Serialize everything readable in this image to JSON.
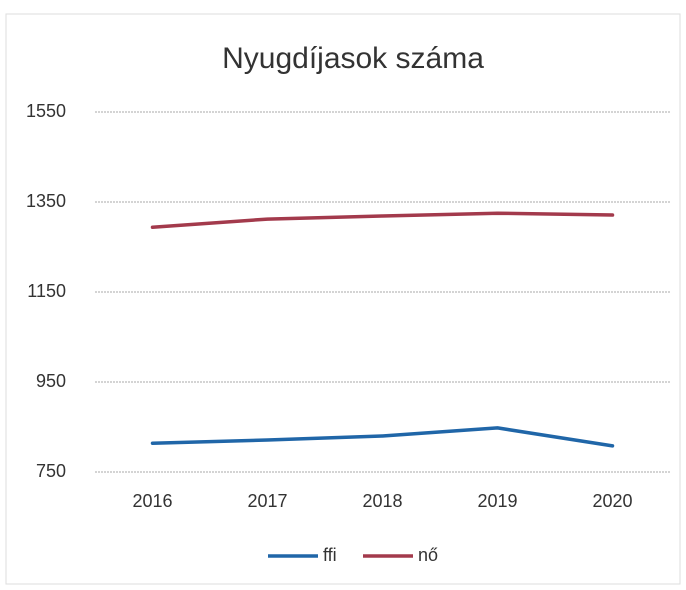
{
  "chart_data": {
    "type": "line",
    "title": "Nyugdíjasok száma",
    "categories": [
      "2016",
      "2017",
      "2018",
      "2019",
      "2020"
    ],
    "series": [
      {
        "name": "ffi",
        "color": "#2066a8",
        "values": [
          814,
          821,
          830,
          848,
          808
        ]
      },
      {
        "name": "nő",
        "color": "#a33a4c",
        "values": [
          1294,
          1312,
          1319,
          1325,
          1321
        ]
      }
    ],
    "ylim": [
      750,
      1550
    ],
    "yticks": [
      750,
      950,
      1150,
      1350,
      1550
    ],
    "grid": true,
    "legend": "bottom"
  }
}
